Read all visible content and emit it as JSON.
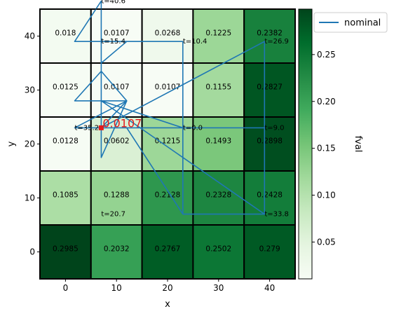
{
  "chart_data": {
    "type": "heatmap",
    "xlabel": "x",
    "ylabel": "y",
    "colorbar_label": "fval",
    "x_ticks": [
      0,
      10,
      20,
      30,
      40
    ],
    "y_ticks": [
      0,
      10,
      20,
      30,
      40
    ],
    "colorbar_ticks": [
      "0.05",
      "0.10",
      "0.15",
      "0.20",
      "0.25"
    ],
    "colorbar_range": [
      0.0107,
      0.2985
    ],
    "colormap": [
      "#f7fcf5",
      "#e5f5e0",
      "#c7e9c0",
      "#a1d99b",
      "#74c476",
      "#41ab5d",
      "#238b45",
      "#006d2c",
      "#00441b"
    ],
    "grid_x_centers": [
      0,
      10,
      20,
      30,
      40
    ],
    "grid_y_centers": [
      0,
      10,
      20,
      30,
      40
    ],
    "cells": [
      {
        "x": 0,
        "y": 40,
        "value": 0.018,
        "label": "0.018"
      },
      {
        "x": 10,
        "y": 40,
        "value": 0.0107,
        "label": "0.0107"
      },
      {
        "x": 20,
        "y": 40,
        "value": 0.0268,
        "label": "0.0268"
      },
      {
        "x": 30,
        "y": 40,
        "value": 0.1225,
        "label": "0.1225"
      },
      {
        "x": 40,
        "y": 40,
        "value": 0.2382,
        "label": "0.2382"
      },
      {
        "x": 0,
        "y": 30,
        "value": 0.0125,
        "label": "0.0125"
      },
      {
        "x": 10,
        "y": 30,
        "value": 0.0107,
        "label": "0.0107"
      },
      {
        "x": 20,
        "y": 30,
        "value": 0.0107,
        "label": "0.0107"
      },
      {
        "x": 30,
        "y": 30,
        "value": 0.1155,
        "label": "0.1155"
      },
      {
        "x": 40,
        "y": 30,
        "value": 0.2827,
        "label": "0.2827"
      },
      {
        "x": 0,
        "y": 20,
        "value": 0.0128,
        "label": "0.0128"
      },
      {
        "x": 10,
        "y": 20,
        "value": 0.0602,
        "label": "0.0602"
      },
      {
        "x": 20,
        "y": 20,
        "value": 0.1215,
        "label": "0.1215"
      },
      {
        "x": 30,
        "y": 20,
        "value": 0.1493,
        "label": "0.1493"
      },
      {
        "x": 40,
        "y": 20,
        "value": 0.2898,
        "label": "0.2898"
      },
      {
        "x": 0,
        "y": 10,
        "value": 0.1085,
        "label": "0.1085"
      },
      {
        "x": 10,
        "y": 10,
        "value": 0.1288,
        "label": "0.1288"
      },
      {
        "x": 20,
        "y": 10,
        "value": 0.2128,
        "label": "0.2128"
      },
      {
        "x": 30,
        "y": 10,
        "value": 0.2328,
        "label": "0.2328"
      },
      {
        "x": 40,
        "y": 10,
        "value": 0.2428,
        "label": "0.2428"
      },
      {
        "x": 0,
        "y": 0,
        "value": 0.2985,
        "label": "0.2985"
      },
      {
        "x": 10,
        "y": 0,
        "value": 0.2032,
        "label": "0.2032"
      },
      {
        "x": 20,
        "y": 0,
        "value": 0.2767,
        "label": "0.2767"
      },
      {
        "x": 30,
        "y": 0,
        "value": 0.2502,
        "label": "0.2502"
      },
      {
        "x": 40,
        "y": 0,
        "value": 0.279,
        "label": "0.279"
      }
    ],
    "series": [
      {
        "name": "nominal",
        "color": "#1f77b4",
        "points": [
          [
            7,
            23
          ],
          [
            12,
            28
          ],
          [
            7,
            17.5
          ],
          [
            7,
            23
          ],
          [
            1.8,
            23
          ],
          [
            12,
            28
          ],
          [
            7,
            33.5
          ],
          [
            7,
            23
          ],
          [
            12,
            28
          ],
          [
            1.8,
            28
          ],
          [
            7,
            33.5
          ],
          [
            7,
            39
          ],
          [
            12,
            39
          ],
          [
            7,
            35
          ],
          [
            7,
            46.5
          ],
          [
            1.8,
            39
          ],
          [
            7,
            39
          ],
          [
            7,
            23
          ],
          [
            7,
            39
          ],
          [
            23,
            39
          ],
          [
            23,
            23
          ],
          [
            39,
            23
          ],
          [
            39,
            7
          ],
          [
            7,
            28
          ],
          [
            23,
            23
          ],
          [
            23,
            7
          ],
          [
            12,
            23
          ],
          [
            7,
            23
          ],
          [
            39,
            39
          ],
          [
            39,
            7
          ],
          [
            23,
            7
          ],
          [
            23,
            23
          ],
          [
            7,
            23
          ]
        ]
      }
    ],
    "time_annotations": [
      {
        "x": 7,
        "y": 46.5,
        "text": "t=40.6"
      },
      {
        "x": 7,
        "y": 39,
        "text": "t=15.4"
      },
      {
        "x": 23,
        "y": 39,
        "text": "t=10.4"
      },
      {
        "x": 39,
        "y": 39,
        "text": "t=26.9"
      },
      {
        "x": 1.8,
        "y": 23,
        "text": "t=35.2"
      },
      {
        "x": 23,
        "y": 23,
        "text": "t=0.0"
      },
      {
        "x": 39,
        "y": 23,
        "text": "t=9.0"
      },
      {
        "x": 7,
        "y": 7,
        "text": "t=20.7"
      },
      {
        "x": 39,
        "y": 7,
        "text": "t=33.8"
      }
    ],
    "current_point": {
      "x": 7,
      "y": 23,
      "label": "0.0107",
      "color": "#e41a1c"
    },
    "legend": {
      "placement": "top-right-outside",
      "entries": [
        "nominal"
      ]
    }
  }
}
